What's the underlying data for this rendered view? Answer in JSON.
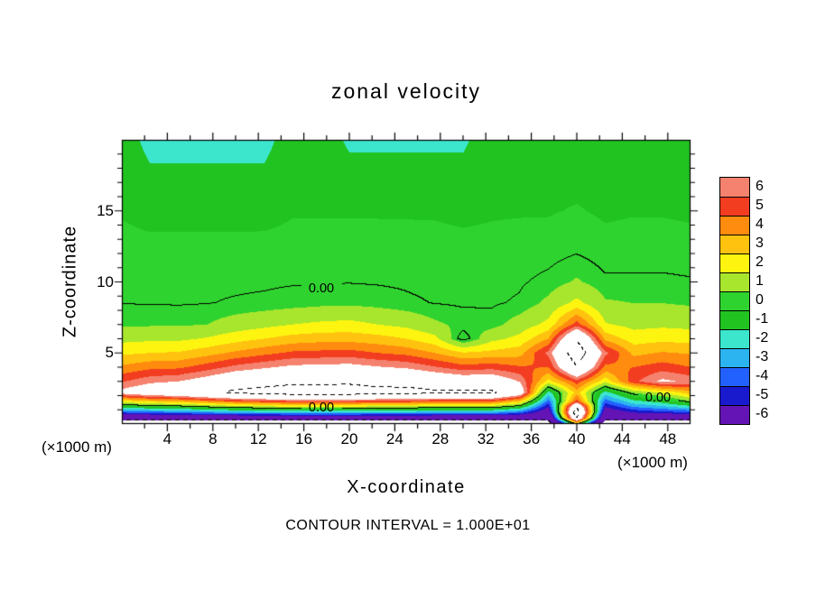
{
  "title": "zonal velocity",
  "axes": {
    "x_label": "X-coordinate",
    "y_label": "Z-coordinate",
    "x_unit": "(×1000 m)",
    "y_unit": "(×1000 m)"
  },
  "caption": "CONTOUR INTERVAL = 1.000E+01",
  "contour_labels": [
    "0.00",
    "0.00",
    "0.00"
  ],
  "colorbar": {
    "labels": [
      "6",
      "5",
      "4",
      "3",
      "2",
      "1",
      "0",
      "-1",
      "-2",
      "-3",
      "-4",
      "-5",
      "-6"
    ],
    "colors": [
      "#f5826e",
      "#f23d21",
      "#ff8c0f",
      "#ffc30f",
      "#fdf50f",
      "#a8e62d",
      "#2fd32f",
      "#21c321",
      "#3be6cd",
      "#2bb4f0",
      "#2361ff",
      "#1919cd",
      "#6414b4"
    ]
  },
  "chart_data": {
    "type": "heatmap",
    "title": "zonal velocity",
    "xlabel": "X-coordinate (×1000 m)",
    "ylabel": "Z-coordinate (×1000 m)",
    "x_range": [
      0,
      50
    ],
    "z_range": [
      0,
      20
    ],
    "x_ticks": [
      4,
      8,
      12,
      16,
      20,
      24,
      28,
      32,
      36,
      40,
      44,
      48
    ],
    "y_ticks": [
      5,
      10,
      15
    ],
    "contour_interval": 10,
    "contour_levels_drawn": [
      -10,
      0,
      10
    ],
    "levels": [
      -6,
      -5,
      -4,
      -3,
      -2,
      -1,
      0,
      1,
      2,
      3,
      4,
      5,
      6
    ],
    "band_colors": [
      "#6414b4",
      "#1919cd",
      "#2361ff",
      "#2bb4f0",
      "#3be6cd",
      "#21c321",
      "#2fd32f",
      "#a8e62d",
      "#fdf50f",
      "#ffc30f",
      "#ff8c0f",
      "#f23d21",
      "#f5826e"
    ],
    "out_of_range_color": "#ffffff",
    "xs": [
      0,
      2.5,
      5,
      7.5,
      10,
      12.5,
      15,
      17.5,
      20,
      22.5,
      25,
      27.5,
      30,
      32.5,
      35,
      37.5,
      40,
      42.5,
      45,
      47.5,
      50
    ],
    "zs": [
      0,
      0.4,
      0.8,
      1.2,
      1.6,
      2.2,
      3,
      4,
      5,
      6,
      7,
      8.5,
      10,
      12,
      15,
      20
    ],
    "values": [
      [
        -13,
        -8.5,
        -4.5,
        -1.2,
        2.1,
        7,
        5.4,
        3.7,
        2.3,
        1.2,
        0.4,
        -0.02,
        -0.1,
        -0.3,
        -0.55,
        -0.85
      ],
      [
        -13,
        -8.3,
        -4.1,
        -0.6,
        2.8,
        8,
        6.2,
        4.2,
        2.5,
        1.3,
        0.4,
        -0.03,
        -0.1,
        -0.3,
        -0.7,
        -1.9
      ],
      [
        -13,
        -8.3,
        -3.9,
        -0.4,
        3.2,
        8.5,
        6.5,
        4.3,
        2.6,
        1.3,
        0.4,
        -0.05,
        -0.15,
        -0.3,
        -0.7,
        -1.9
      ],
      [
        -13,
        -8.1,
        -3.5,
        0.2,
        3.9,
        9.5,
        7.3,
        5,
        3.1,
        1.6,
        0.5,
        -0.02,
        -0.1,
        -0.3,
        -0.7,
        -1.9
      ],
      [
        -13,
        -7.9,
        -3.2,
        0.7,
        4.6,
        10.5,
        8.3,
        5.8,
        3.7,
        2.1,
        0.9,
        0.05,
        -0.1,
        -0.3,
        -0.7,
        -1.9
      ],
      [
        -13,
        -7.8,
        -3,
        1,
        5,
        11,
        8.8,
        6.3,
        4.2,
        2.5,
        1.2,
        0.1,
        -0.08,
        -0.28,
        -0.7,
        -1.9
      ],
      [
        -13,
        -7.7,
        -2.8,
        1.3,
        5.4,
        11.5,
        9.3,
        6.8,
        4.7,
        2.9,
        1.5,
        0.2,
        -0.05,
        -0.27,
        -0.55,
        -0.85
      ],
      [
        -13,
        -7.7,
        -2.8,
        1.3,
        5.4,
        11.5,
        9.3,
        6.9,
        4.8,
        3.1,
        1.7,
        0.3,
        -0.04,
        -0.26,
        -0.55,
        -0.85
      ],
      [
        -13,
        -7.7,
        -2.8,
        1.3,
        5.4,
        11.5,
        9.4,
        7,
        4.9,
        3.1,
        1.8,
        0.35,
        -0.03,
        -0.26,
        -0.55,
        -1.7
      ],
      [
        -13,
        -7.8,
        -3,
        1,
        5,
        11,
        8.9,
        6.6,
        4.5,
        2.9,
        1.5,
        0.25,
        -0.05,
        -0.28,
        -0.55,
        -1.7
      ],
      [
        -13,
        -7.8,
        -3,
        1,
        5,
        11,
        8.8,
        6.3,
        4.2,
        2.5,
        1.2,
        0.1,
        -0.08,
        -0.3,
        -0.55,
        -1.7
      ],
      [
        -13,
        -7.9,
        -3.2,
        0.7,
        4.6,
        10.5,
        8.2,
        5.6,
        3.5,
        1.8,
        0.65,
        -0.02,
        -0.15,
        -0.33,
        -0.55,
        -1.7
      ],
      [
        -13,
        -7.9,
        -3.2,
        0.7,
        4.6,
        10.5,
        7.8,
        4.9,
        2.6,
        -0.4,
        0.3,
        -0.08,
        -0.18,
        -0.35,
        -0.6,
        -1.7
      ],
      [
        -13,
        -7.9,
        -3.2,
        0.7,
        4.6,
        10.5,
        7.9,
        5.1,
        2.8,
        1.2,
        0.2,
        -0.07,
        -0.17,
        -0.35,
        -0.55,
        -0.85
      ],
      [
        -13,
        -8.3,
        -4.1,
        -0.6,
        2.8,
        8,
        6.4,
        4.6,
        3.1,
        1.8,
        0.9,
        0.07,
        -0.07,
        -0.25,
        -0.55,
        -0.85
      ],
      [
        -12,
        -9,
        -7,
        -5.5,
        -4,
        -2,
        2.1,
        4.5,
        5.8,
        3.5,
        1.8,
        0.7,
        0.15,
        -0.2,
        -0.55,
        -0.95
      ],
      [
        0.5,
        10,
        12,
        10,
        5,
        3,
        5,
        9.8,
        12,
        9.8,
        5,
        1.8,
        0.6,
        -0.02,
        -0.45,
        -0.95
      ],
      [
        -12,
        -9,
        -7,
        -5.5,
        -4,
        -2,
        1.8,
        4.2,
        5.8,
        3.2,
        1.6,
        0.6,
        0.1,
        -0.25,
        -0.6,
        -0.95
      ],
      [
        -13,
        -8.8,
        -5.5,
        -3.5,
        -1.8,
        0.5,
        5.2,
        4.5,
        3.2,
        2,
        1.2,
        0.5,
        0.08,
        -0.2,
        -0.55,
        -0.95
      ],
      [
        -13,
        -8.6,
        -5,
        -2.8,
        -1,
        1.5,
        6.8,
        5,
        3.6,
        2.2,
        1.3,
        0.5,
        0.1,
        -0.22,
        -0.55,
        -0.95
      ],
      [
        -13,
        -8.4,
        -4.6,
        -2,
        0.5,
        3,
        6.2,
        4.5,
        3.4,
        2.1,
        1.2,
        0.4,
        0.05,
        -0.25,
        -0.6,
        -0.95
      ]
    ]
  }
}
